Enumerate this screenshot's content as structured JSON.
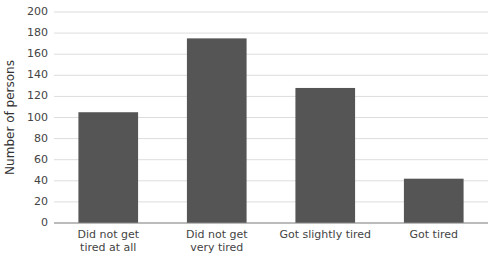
{
  "chart_data": {
    "type": "bar",
    "categories": [
      "Did not get\ntired at all",
      "Did not get\nvery tired",
      "Got slightly tired",
      "Got tired"
    ],
    "values": [
      105,
      175,
      128,
      42
    ],
    "color": "#555555",
    "ylabel": "Number of persons",
    "ylim": [
      0,
      200
    ],
    "yticks": [
      0,
      20,
      40,
      60,
      80,
      100,
      120,
      140,
      160,
      180,
      200
    ],
    "grid": true
  }
}
